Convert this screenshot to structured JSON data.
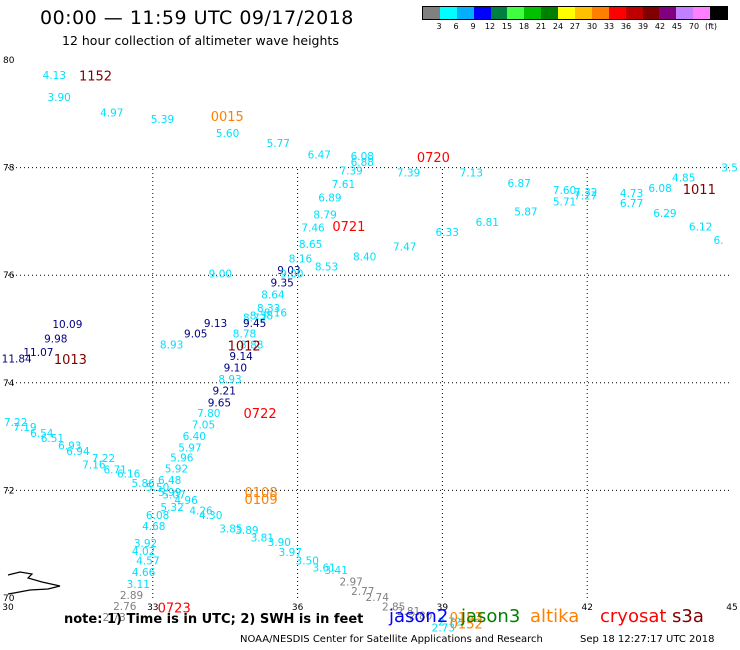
{
  "header": {
    "title": "00:00 — 11:59 UTC 09/17/2018",
    "subtitle": "12 hour collection of altimeter wave heights"
  },
  "legend": {
    "colors": [
      "#808080",
      "#00ffff",
      "#00b0ff",
      "#0000ff",
      "#008040",
      "#40ff40",
      "#00c000",
      "#008000",
      "#ffff00",
      "#ffc000",
      "#ff8000",
      "#ff0000",
      "#c00000",
      "#800000",
      "#800080",
      "#c080ff",
      "#ff80ff",
      "#000000"
    ],
    "ticks": [
      "3",
      "6",
      "9",
      "12",
      "15",
      "18",
      "21",
      "24",
      "27",
      "30",
      "33",
      "36",
      "39",
      "42",
      "45",
      "70",
      "(ft)"
    ]
  },
  "map": {
    "lon_range": [
      30,
      45
    ],
    "lat_range": [
      70,
      80
    ],
    "lon_ticks": [
      "30",
      "33",
      "36",
      "39",
      "42",
      "45"
    ],
    "lat_ticks": [
      "80",
      "78",
      "76",
      "74",
      "72",
      "70"
    ],
    "grid": "dotted"
  },
  "colors": {
    "jason2": "#0000ff",
    "jason3": "#008000",
    "altika": "#ff8000",
    "cryosat": "#ff0000",
    "s3a": "#800000",
    "cyan": "#00e0ff",
    "gray": "#808080",
    "navy": "#000080"
  },
  "chart_data": {
    "type": "scatter",
    "points": [
      {
        "lon": 30.96,
        "lat": 79.65,
        "label": "4.13",
        "color": "cyan"
      },
      {
        "lon": 31.06,
        "lat": 79.24,
        "label": "3.90",
        "color": "cyan"
      },
      {
        "lon": 32.15,
        "lat": 78.95,
        "label": "4.97",
        "color": "cyan"
      },
      {
        "lon": 33.2,
        "lat": 78.83,
        "label": "5.39",
        "color": "cyan"
      },
      {
        "lon": 34.55,
        "lat": 78.57,
        "label": "5.60",
        "color": "cyan"
      },
      {
        "lon": 35.6,
        "lat": 78.38,
        "label": "5.77",
        "color": "cyan"
      },
      {
        "lon": 36.45,
        "lat": 78.17,
        "label": "6.47",
        "color": "cyan"
      },
      {
        "lon": 37.34,
        "lat": 78.14,
        "label": "6.08",
        "color": "cyan"
      },
      {
        "lon": 37.34,
        "lat": 78.03,
        "label": "6.88",
        "color": "cyan"
      },
      {
        "lon": 37.11,
        "lat": 77.87,
        "label": "7.39",
        "color": "cyan"
      },
      {
        "lon": 38.3,
        "lat": 77.83,
        "label": "7.39",
        "color": "cyan"
      },
      {
        "lon": 36.95,
        "lat": 77.62,
        "label": "7.61",
        "color": "cyan"
      },
      {
        "lon": 36.67,
        "lat": 77.37,
        "label": "6.89",
        "color": "cyan"
      },
      {
        "lon": 36.57,
        "lat": 77.05,
        "label": "8.79",
        "color": "cyan"
      },
      {
        "lon": 36.32,
        "lat": 76.81,
        "label": "7.46",
        "color": "cyan"
      },
      {
        "lon": 36.27,
        "lat": 76.51,
        "label": "8.65",
        "color": "cyan"
      },
      {
        "lon": 36.06,
        "lat": 76.24,
        "label": "8.16",
        "color": "cyan"
      },
      {
        "lon": 35.82,
        "lat": 76.02,
        "label": "9.03",
        "color": "navy"
      },
      {
        "lon": 35.68,
        "lat": 75.79,
        "label": "9.35",
        "color": "navy"
      },
      {
        "lon": 35.49,
        "lat": 75.57,
        "label": "8.64",
        "color": "cyan"
      },
      {
        "lon": 35.4,
        "lat": 75.32,
        "label": "8.33",
        "color": "cyan"
      },
      {
        "lon": 35.25,
        "lat": 75.18,
        "label": "8.38",
        "color": "cyan"
      },
      {
        "lon": 35.54,
        "lat": 75.23,
        "label": "8.16",
        "color": "cyan"
      },
      {
        "lon": 35.11,
        "lat": 75.14,
        "label": "8.72",
        "color": "cyan"
      },
      {
        "lon": 35.11,
        "lat": 75.04,
        "label": "9.45",
        "color": "navy"
      },
      {
        "lon": 34.3,
        "lat": 75.04,
        "label": "9.13",
        "color": "navy"
      },
      {
        "lon": 34.9,
        "lat": 74.84,
        "label": "8.78",
        "color": "cyan"
      },
      {
        "lon": 33.89,
        "lat": 74.84,
        "label": "9.05",
        "color": "navy"
      },
      {
        "lon": 33.39,
        "lat": 74.64,
        "label": "8.93",
        "color": "cyan"
      },
      {
        "lon": 35.05,
        "lat": 74.64,
        "label": "8.88",
        "color": "cyan"
      },
      {
        "lon": 34.83,
        "lat": 74.42,
        "label": "9.14",
        "color": "navy"
      },
      {
        "lon": 34.71,
        "lat": 74.21,
        "label": "9.10",
        "color": "navy"
      },
      {
        "lon": 34.6,
        "lat": 74.0,
        "label": "8.93",
        "color": "cyan"
      },
      {
        "lon": 34.48,
        "lat": 73.78,
        "label": "9.21",
        "color": "navy"
      },
      {
        "lon": 34.38,
        "lat": 73.56,
        "label": "9.65",
        "color": "navy"
      },
      {
        "lon": 34.16,
        "lat": 73.36,
        "label": "7.80",
        "color": "cyan"
      },
      {
        "lon": 34.05,
        "lat": 73.15,
        "label": "7.05",
        "color": "cyan"
      },
      {
        "lon": 33.86,
        "lat": 72.94,
        "label": "6.40",
        "color": "cyan"
      },
      {
        "lon": 33.77,
        "lat": 72.72,
        "label": "5.97",
        "color": "cyan"
      },
      {
        "lon": 33.6,
        "lat": 72.54,
        "label": "5.96",
        "color": "cyan"
      },
      {
        "lon": 33.49,
        "lat": 72.33,
        "label": "5.92",
        "color": "cyan"
      },
      {
        "lon": 33.35,
        "lat": 72.12,
        "label": "6.48",
        "color": "cyan"
      },
      {
        "lon": 33.35,
        "lat": 71.9,
        "label": "5.99",
        "color": "cyan"
      },
      {
        "lon": 33.1,
        "lat": 71.47,
        "label": "6.08",
        "color": "cyan"
      },
      {
        "lon": 33.02,
        "lat": 71.26,
        "label": "4.68",
        "color": "cyan"
      },
      {
        "lon": 32.85,
        "lat": 70.95,
        "label": "3.92",
        "color": "cyan"
      },
      {
        "lon": 32.81,
        "lat": 70.8,
        "label": "4.02",
        "color": "cyan"
      },
      {
        "lon": 32.9,
        "lat": 70.62,
        "label": "4.57",
        "color": "cyan"
      },
      {
        "lon": 32.81,
        "lat": 70.41,
        "label": "4.66",
        "color": "cyan"
      },
      {
        "lon": 32.7,
        "lat": 70.19,
        "label": "3.11",
        "color": "cyan"
      },
      {
        "lon": 32.56,
        "lat": 69.98,
        "label": "2.89",
        "color": "gray"
      },
      {
        "lon": 32.42,
        "lat": 69.78,
        "label": "2.76",
        "color": "gray"
      },
      {
        "lon": 32.2,
        "lat": 69.57,
        "label": "2.73",
        "color": "gray"
      },
      {
        "lon": 30.16,
        "lat": 73.2,
        "label": "7.22",
        "color": "cyan"
      },
      {
        "lon": 30.35,
        "lat": 73.1,
        "label": "7.19",
        "color": "cyan"
      },
      {
        "lon": 30.7,
        "lat": 72.99,
        "label": "6.54",
        "color": "cyan"
      },
      {
        "lon": 30.92,
        "lat": 72.9,
        "label": "6.51",
        "color": "cyan"
      },
      {
        "lon": 31.28,
        "lat": 72.76,
        "label": "6.93",
        "color": "cyan"
      },
      {
        "lon": 31.45,
        "lat": 72.66,
        "label": "6.94",
        "color": "cyan"
      },
      {
        "lon": 31.98,
        "lat": 72.53,
        "label": "7.22",
        "color": "cyan"
      },
      {
        "lon": 31.78,
        "lat": 72.41,
        "label": "7.16",
        "color": "cyan"
      },
      {
        "lon": 32.22,
        "lat": 72.31,
        "label": "6.71",
        "color": "cyan"
      },
      {
        "lon": 32.5,
        "lat": 72.24,
        "label": "6.16",
        "color": "cyan"
      },
      {
        "lon": 32.8,
        "lat": 72.06,
        "label": "5.86",
        "color": "cyan"
      },
      {
        "lon": 33.1,
        "lat": 71.99,
        "label": "5.50",
        "color": "cyan"
      },
      {
        "lon": 33.44,
        "lat": 71.85,
        "label": "5.07",
        "color": "cyan"
      },
      {
        "lon": 33.69,
        "lat": 71.75,
        "label": "4.96",
        "color": "cyan"
      },
      {
        "lon": 33.4,
        "lat": 71.62,
        "label": "5.32",
        "color": "cyan"
      },
      {
        "lon": 34.2,
        "lat": 71.47,
        "label": "4.30",
        "color": "cyan"
      },
      {
        "lon": 34.0,
        "lat": 71.55,
        "label": "4.26",
        "color": "cyan"
      },
      {
        "lon": 34.62,
        "lat": 71.22,
        "label": "3.85",
        "color": "cyan"
      },
      {
        "lon": 34.95,
        "lat": 71.19,
        "label": "3.89",
        "color": "cyan"
      },
      {
        "lon": 35.27,
        "lat": 71.05,
        "label": "3.81",
        "color": "cyan"
      },
      {
        "lon": 35.62,
        "lat": 70.97,
        "label": "3.90",
        "color": "cyan"
      },
      {
        "lon": 35.85,
        "lat": 70.78,
        "label": "3.97",
        "color": "cyan"
      },
      {
        "lon": 36.2,
        "lat": 70.62,
        "label": "3.50",
        "color": "cyan"
      },
      {
        "lon": 36.55,
        "lat": 70.49,
        "label": "3.61",
        "color": "cyan"
      },
      {
        "lon": 36.8,
        "lat": 70.45,
        "label": "3.41",
        "color": "cyan"
      },
      {
        "lon": 37.11,
        "lat": 70.23,
        "label": "2.97",
        "color": "gray"
      },
      {
        "lon": 37.35,
        "lat": 70.06,
        "label": "2.77",
        "color": "gray"
      },
      {
        "lon": 37.65,
        "lat": 69.94,
        "label": "2.74",
        "color": "gray"
      },
      {
        "lon": 37.99,
        "lat": 69.77,
        "label": "2.85",
        "color": "gray"
      },
      {
        "lon": 38.3,
        "lat": 69.68,
        "label": "2.81",
        "color": "gray"
      },
      {
        "lon": 38.55,
        "lat": 69.6,
        "label": "2.80",
        "color": "gray"
      },
      {
        "lon": 39.02,
        "lat": 69.38,
        "label": "2.73",
        "color": "cyan"
      },
      {
        "lon": 39.15,
        "lat": 69.49,
        "label": "2.72",
        "color": "cyan"
      },
      {
        "lon": 34.4,
        "lat": 75.96,
        "label": "9.00",
        "color": "cyan"
      },
      {
        "lon": 35.88,
        "lat": 75.96,
        "label": "9.00",
        "color": "cyan"
      },
      {
        "lon": 36.6,
        "lat": 76.09,
        "label": "8.53",
        "color": "cyan"
      },
      {
        "lon": 37.39,
        "lat": 76.27,
        "label": "8.40",
        "color": "cyan"
      },
      {
        "lon": 38.22,
        "lat": 76.46,
        "label": "7.47",
        "color": "cyan"
      },
      {
        "lon": 39.1,
        "lat": 76.73,
        "label": "6.33",
        "color": "cyan"
      },
      {
        "lon": 39.93,
        "lat": 76.91,
        "label": "6.81",
        "color": "cyan"
      },
      {
        "lon": 40.73,
        "lat": 77.11,
        "label": "5.87",
        "color": "cyan"
      },
      {
        "lon": 41.53,
        "lat": 77.3,
        "label": "5.71",
        "color": "cyan"
      },
      {
        "lon": 41.97,
        "lat": 77.47,
        "label": "7.32",
        "color": "cyan"
      },
      {
        "lon": 41.97,
        "lat": 77.41,
        "label": "7.27",
        "color": "cyan"
      },
      {
        "lon": 42.92,
        "lat": 77.27,
        "label": "6.77",
        "color": "cyan"
      },
      {
        "lon": 43.61,
        "lat": 77.08,
        "label": "6.29",
        "color": "cyan"
      },
      {
        "lon": 44.35,
        "lat": 76.83,
        "label": "6.12",
        "color": "cyan"
      },
      {
        "lon": 44.72,
        "lat": 76.58,
        "label": "6.",
        "color": "cyan"
      },
      {
        "lon": 39.6,
        "lat": 77.83,
        "label": "7.13",
        "color": "cyan"
      },
      {
        "lon": 40.59,
        "lat": 77.64,
        "label": "6.87",
        "color": "cyan"
      },
      {
        "lon": 41.53,
        "lat": 77.51,
        "label": "7.60",
        "color": "cyan"
      },
      {
        "lon": 42.92,
        "lat": 77.45,
        "label": "4.73",
        "color": "cyan"
      },
      {
        "lon": 43.51,
        "lat": 77.55,
        "label": "6.08",
        "color": "cyan"
      },
      {
        "lon": 44.0,
        "lat": 77.74,
        "label": "4.85",
        "color": "cyan"
      },
      {
        "lon": 44.95,
        "lat": 77.93,
        "label": "3.5",
        "color": "cyan"
      },
      {
        "lon": 31.23,
        "lat": 75.02,
        "label": "10.09",
        "color": "navy"
      },
      {
        "lon": 30.99,
        "lat": 74.75,
        "label": "9.98",
        "color": "navy"
      },
      {
        "lon": 30.63,
        "lat": 74.5,
        "label": "11.07",
        "color": "navy"
      },
      {
        "lon": 30.18,
        "lat": 74.38,
        "label": "11.84",
        "color": "navy"
      }
    ],
    "time_labels": [
      {
        "lon": 31.47,
        "lat": 79.62,
        "label": "1152",
        "color": "s3a"
      },
      {
        "lon": 34.2,
        "lat": 78.87,
        "label": "0015",
        "color": "altika"
      },
      {
        "lon": 38.47,
        "lat": 78.1,
        "label": "0720",
        "color": "cryosat"
      },
      {
        "lon": 43.98,
        "lat": 77.51,
        "label": "1011",
        "color": "s3a"
      },
      {
        "lon": 36.72,
        "lat": 76.82,
        "label": "0721",
        "color": "cryosat"
      },
      {
        "lon": 34.55,
        "lat": 74.6,
        "label": "1012",
        "color": "s3a"
      },
      {
        "lon": 30.95,
        "lat": 74.35,
        "label": "1013",
        "color": "s3a"
      },
      {
        "lon": 34.88,
        "lat": 73.35,
        "label": "0722",
        "color": "cryosat"
      },
      {
        "lon": 34.9,
        "lat": 71.88,
        "label": "0108",
        "color": "altika"
      },
      {
        "lon": 34.9,
        "lat": 71.75,
        "label": "0109",
        "color": "altika"
      },
      {
        "lon": 33.1,
        "lat": 69.73,
        "label": "0723",
        "color": "cryosat"
      },
      {
        "lon": 39.15,
        "lat": 69.55,
        "label": "0153",
        "color": "altika"
      },
      {
        "lon": 39.15,
        "lat": 69.43,
        "label": "0152",
        "color": "altika"
      }
    ]
  },
  "footer": {
    "note": "note:  1) Time is in UTC;  2) SWH is in feet",
    "satellites": [
      {
        "name": "jason2",
        "color": "#0000ff"
      },
      {
        "name": "jason3",
        "color": "#008000"
      },
      {
        "name": "altika",
        "color": "#ff8000"
      },
      {
        "name": "cryosat",
        "color": "#ff0000"
      },
      {
        "name": "s3a",
        "color": "#800000"
      }
    ],
    "credit": "NOAA/NESDIS Center for Satellite Applications and Research",
    "stamp": "Sep 18 12:27:17 UTC 2018"
  }
}
